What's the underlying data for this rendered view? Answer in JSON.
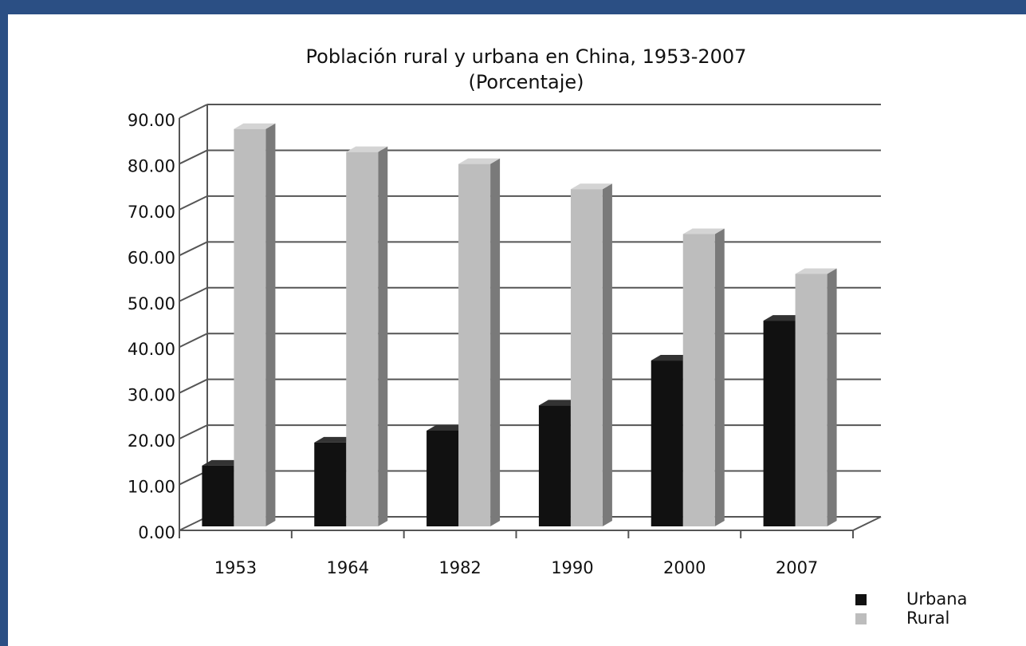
{
  "chart_data": {
    "type": "bar3d",
    "title": "Población rural y urbana en China, 1953-2007",
    "subtitle": "(Porcentaje)",
    "categories": [
      "1953",
      "1964",
      "1982",
      "1990",
      "2000",
      "2007"
    ],
    "series": [
      {
        "name": "Urbana",
        "color": "#111111",
        "values": [
          13.26,
          18.3,
          20.9,
          26.4,
          36.2,
          44.9
        ]
      },
      {
        "name": "Rural",
        "color": "#bdbdbd",
        "values": [
          86.74,
          81.7,
          79.1,
          73.6,
          63.8,
          55.1
        ]
      }
    ],
    "ylim": [
      0,
      90
    ],
    "yticks": [
      {
        "value": 0,
        "label": "0.00"
      },
      {
        "value": 10,
        "label": "10.00"
      },
      {
        "value": 20,
        "label": "20.00"
      },
      {
        "value": 30,
        "label": "30.00"
      },
      {
        "value": 40,
        "label": "40.00"
      },
      {
        "value": 50,
        "label": "50.00"
      },
      {
        "value": 60,
        "label": "60.00"
      },
      {
        "value": 70,
        "label": "70.00"
      },
      {
        "value": 80,
        "label": "80.00"
      },
      {
        "value": 90,
        "label": "90.00"
      }
    ],
    "grid": true,
    "legend": "lower-right"
  }
}
